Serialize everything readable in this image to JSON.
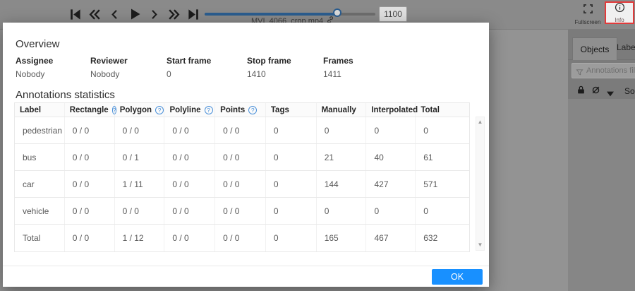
{
  "colors": {
    "accent_blue": "#1890ff",
    "dimmed_blue": "#2b5d8f",
    "highlight_red": "#e23b3b"
  },
  "player": {
    "control_icons": [
      "first-frame-icon",
      "backward-icon",
      "previous-frame-icon",
      "play-icon",
      "next-frame-icon",
      "forward-icon",
      "last-frame-icon"
    ],
    "filename": "MVI_4066_crop.mp4",
    "frame_value": "1100",
    "slider": {
      "value": 1100,
      "max": 1410,
      "percent": 77.8
    }
  },
  "topbar_right": {
    "fullscreen_label": "Fullscreen",
    "info_label": "Info"
  },
  "sidebar": {
    "tabs": [
      {
        "label": "Objects",
        "active": true
      },
      {
        "label": "Labels",
        "active": false
      }
    ],
    "filter_placeholder": "Annotations filter",
    "icon_names": [
      "lock-icon",
      "hide-icon",
      "collapse-icon"
    ],
    "sort_label": "So"
  },
  "modal": {
    "overview_title": "Overview",
    "fields": [
      {
        "label": "Assignee",
        "value": "Nobody"
      },
      {
        "label": "Reviewer",
        "value": "Nobody"
      },
      {
        "label": "Start frame",
        "value": "0"
      },
      {
        "label": "Stop frame",
        "value": "1410"
      },
      {
        "label": "Frames",
        "value": "1411"
      }
    ],
    "stats_title": "Annotations statistics",
    "table": {
      "columns": [
        {
          "label": "Label",
          "help": false
        },
        {
          "label": "Rectangle",
          "help": true
        },
        {
          "label": "Polygon",
          "help": true
        },
        {
          "label": "Polyline",
          "help": true
        },
        {
          "label": "Points",
          "help": true
        },
        {
          "label": "Tags",
          "help": false
        },
        {
          "label": "Manually",
          "help": false
        },
        {
          "label": "Interpolated",
          "help": false
        },
        {
          "label": "Total",
          "help": false
        }
      ],
      "rows": [
        {
          "label": "pedestrian",
          "values": [
            "0 / 0",
            "0 / 0",
            "0 / 0",
            "0 / 0",
            "0",
            "0",
            "0",
            "0"
          ]
        },
        {
          "label": "bus",
          "values": [
            "0 / 0",
            "0 / 1",
            "0 / 0",
            "0 / 0",
            "0",
            "21",
            "40",
            "61"
          ]
        },
        {
          "label": "car",
          "values": [
            "0 / 0",
            "1 / 11",
            "0 / 0",
            "0 / 0",
            "0",
            "144",
            "427",
            "571"
          ]
        },
        {
          "label": "vehicle",
          "values": [
            "0 / 0",
            "0 / 0",
            "0 / 0",
            "0 / 0",
            "0",
            "0",
            "0",
            "0"
          ]
        },
        {
          "label": "Total",
          "values": [
            "0 / 0",
            "1 / 12",
            "0 / 0",
            "0 / 0",
            "0",
            "165",
            "467",
            "632"
          ]
        }
      ]
    },
    "ok_label": "OK"
  }
}
